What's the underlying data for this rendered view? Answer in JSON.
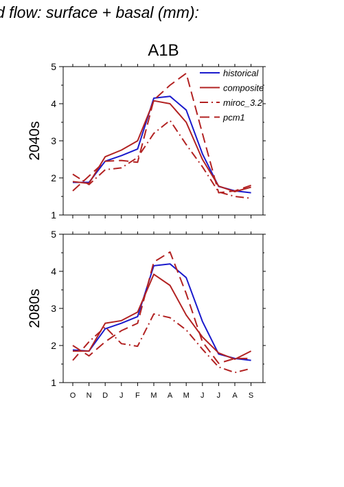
{
  "figure": {
    "header": "d flow: surface + basal (mm):",
    "title": "A1B"
  },
  "chart_data": [
    {
      "type": "line",
      "panel_label": "2040s",
      "categories": [
        "O",
        "N",
        "D",
        "J",
        "F",
        "M",
        "A",
        "M",
        "J",
        "J",
        "A",
        "S"
      ],
      "ylim": [
        1,
        5
      ],
      "yticks": [
        1,
        2,
        3,
        4,
        5
      ],
      "grid": false,
      "legend_position": "top-right",
      "series": [
        {
          "name": "historical",
          "color": "#1a1acc",
          "dash": "solid",
          "values": [
            1.88,
            1.88,
            2.45,
            2.6,
            2.78,
            4.15,
            4.2,
            3.83,
            2.65,
            1.77,
            1.65,
            1.6
          ]
        },
        {
          "name": "composite",
          "color": "#b22222",
          "dash": "solid",
          "values": [
            1.9,
            1.85,
            2.57,
            2.75,
            3.0,
            4.08,
            4.0,
            3.5,
            2.5,
            1.78,
            1.63,
            1.75
          ]
        },
        {
          "name": "miroc_3.2",
          "color": "#b22222",
          "dash": "dashdot",
          "values": [
            2.1,
            1.82,
            2.22,
            2.27,
            2.55,
            3.2,
            3.55,
            2.9,
            2.3,
            1.62,
            1.5,
            1.45
          ]
        },
        {
          "name": "pcm1",
          "color": "#b22222",
          "dash": "dash",
          "values": [
            1.65,
            2.05,
            2.45,
            2.47,
            2.42,
            4.1,
            4.5,
            4.82,
            3.2,
            1.6,
            1.65,
            1.8
          ]
        }
      ]
    },
    {
      "type": "line",
      "panel_label": "2080s",
      "categories": [
        "O",
        "N",
        "D",
        "J",
        "F",
        "M",
        "A",
        "M",
        "J",
        "J",
        "A",
        "S"
      ],
      "ylim": [
        1,
        5
      ],
      "yticks": [
        1,
        2,
        3,
        4,
        5
      ],
      "grid": false,
      "series": [
        {
          "name": "historical",
          "color": "#1a1acc",
          "dash": "solid",
          "values": [
            1.88,
            1.85,
            2.45,
            2.6,
            2.78,
            4.15,
            4.2,
            3.83,
            2.65,
            1.77,
            1.65,
            1.6
          ]
        },
        {
          "name": "composite",
          "color": "#b22222",
          "dash": "solid",
          "values": [
            1.85,
            1.85,
            2.6,
            2.67,
            2.9,
            3.92,
            3.62,
            2.82,
            2.23,
            1.8,
            1.63,
            1.85
          ]
        },
        {
          "name": "miroc_3.2",
          "color": "#b22222",
          "dash": "dashdot",
          "values": [
            1.6,
            2.1,
            2.5,
            2.05,
            1.98,
            2.85,
            2.75,
            2.42,
            1.9,
            1.42,
            1.27,
            1.38
          ]
        },
        {
          "name": "pcm1",
          "color": "#b22222",
          "dash": "dash",
          "values": [
            2.0,
            1.72,
            2.1,
            2.4,
            2.6,
            4.25,
            4.52,
            3.4,
            2.1,
            1.52,
            1.65,
            1.65
          ]
        }
      ]
    }
  ]
}
